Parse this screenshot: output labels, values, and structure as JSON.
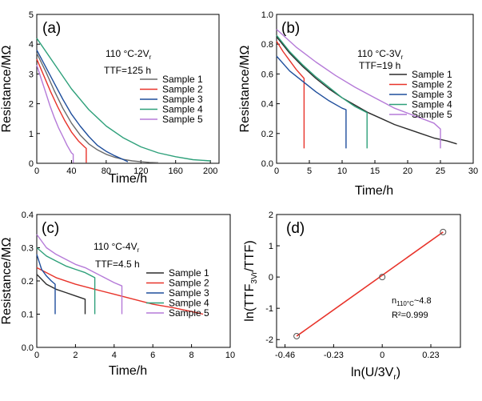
{
  "chart_data": [
    {
      "type": "line",
      "panel_label": "(a)",
      "condition": {
        "main": "110 °C-2V",
        "sub": "r"
      },
      "ttf": "TTF=125 h",
      "xlabel": "Time/h",
      "ylabel": "Resistance/MΩ",
      "xlim": [
        0,
        210
      ],
      "ylim": [
        0,
        5
      ],
      "xticks": [
        "0",
        "40",
        "80",
        "120",
        "160",
        "200"
      ],
      "yticks": [
        "0",
        "1",
        "2",
        "3",
        "4",
        "5"
      ],
      "xtick_values": [
        0,
        40,
        80,
        120,
        160,
        200
      ],
      "ytick_values": [
        0,
        1,
        2,
        3,
        4,
        5
      ],
      "legend": [
        "Sample 1",
        "Sample 2",
        "Sample 3",
        "Sample 4",
        "Sample 5"
      ],
      "series": [
        {
          "name": "Sample 1",
          "color": "#6b6b6b",
          "x": [
            0,
            10,
            20,
            30,
            40,
            50,
            60,
            70,
            80,
            90,
            100,
            110,
            120,
            130,
            140
          ],
          "y": [
            3.7,
            3.1,
            2.45,
            1.85,
            1.35,
            0.95,
            0.65,
            0.45,
            0.3,
            0.2,
            0.13,
            0.08,
            0.05,
            0.03,
            0.02
          ]
        },
        {
          "name": "Sample 2",
          "color": "#e8332a",
          "x": [
            0,
            8,
            16,
            24,
            32,
            40,
            48,
            55,
            57,
            57
          ],
          "y": [
            3.5,
            2.95,
            2.4,
            1.9,
            1.45,
            1.05,
            0.75,
            0.55,
            0.5,
            0.02
          ]
        },
        {
          "name": "Sample 3",
          "color": "#1f4e9c",
          "x": [
            0,
            10,
            20,
            30,
            40,
            50,
            60,
            70,
            80,
            90,
            100,
            105
          ],
          "y": [
            3.8,
            3.25,
            2.7,
            2.15,
            1.65,
            1.25,
            0.9,
            0.6,
            0.4,
            0.25,
            0.12,
            0.05
          ]
        },
        {
          "name": "Sample 4",
          "color": "#2ea07a",
          "x": [
            0,
            20,
            40,
            60,
            80,
            100,
            120,
            140,
            160,
            180,
            200
          ],
          "y": [
            4.2,
            3.35,
            2.5,
            1.8,
            1.25,
            0.85,
            0.55,
            0.35,
            0.22,
            0.12,
            0.08
          ]
        },
        {
          "name": "Sample 5",
          "color": "#b57ad8",
          "x": [
            0,
            5,
            10,
            15,
            20,
            25,
            30,
            35,
            40,
            42,
            42
          ],
          "y": [
            3.3,
            2.85,
            2.4,
            1.95,
            1.55,
            1.2,
            0.9,
            0.6,
            0.35,
            0.3,
            0.02
          ]
        }
      ]
    },
    {
      "type": "line",
      "panel_label": "(b)",
      "condition": {
        "main": "110 °C-3V",
        "sub": "r"
      },
      "ttf": "TTF=19 h",
      "xlabel": "Time/h",
      "ylabel": "Resistance/MΩ",
      "xlim": [
        0,
        30
      ],
      "ylim": [
        0,
        1.0
      ],
      "xticks": [
        "0",
        "5",
        "10",
        "15",
        "20",
        "25",
        "30"
      ],
      "yticks": [
        "0.0",
        "0.2",
        "0.4",
        "0.6",
        "0.8",
        "1.0"
      ],
      "xtick_values": [
        0,
        5,
        10,
        15,
        20,
        25,
        30
      ],
      "ytick_values": [
        0,
        0.2,
        0.4,
        0.6,
        0.8,
        1.0
      ],
      "legend": [
        "Sample 1",
        "Sample 2",
        "Sample 3",
        "Sample 4",
        "Sample 5"
      ],
      "series": [
        {
          "name": "Sample 1",
          "color": "#2b2b2b",
          "x": [
            0,
            2,
            4,
            6,
            8,
            10,
            12,
            14,
            16,
            18,
            20,
            22,
            24,
            26,
            27.5
          ],
          "y": [
            0.85,
            0.74,
            0.65,
            0.57,
            0.5,
            0.44,
            0.39,
            0.34,
            0.3,
            0.26,
            0.23,
            0.2,
            0.17,
            0.15,
            0.13
          ]
        },
        {
          "name": "Sample 2",
          "color": "#e8332a",
          "x": [
            0,
            1,
            2,
            3,
            4,
            4.2,
            4.2
          ],
          "y": [
            0.82,
            0.75,
            0.69,
            0.63,
            0.58,
            0.57,
            0.1
          ]
        },
        {
          "name": "Sample 3",
          "color": "#1f4e9c",
          "x": [
            0,
            2,
            4,
            6,
            8,
            10,
            10.6,
            10.6
          ],
          "y": [
            0.72,
            0.62,
            0.55,
            0.48,
            0.42,
            0.37,
            0.36,
            0.1
          ]
        },
        {
          "name": "Sample 4",
          "color": "#2ea07a",
          "x": [
            0,
            2,
            4,
            6,
            8,
            10,
            12,
            13.8,
            13.8
          ],
          "y": [
            0.86,
            0.75,
            0.66,
            0.58,
            0.51,
            0.44,
            0.38,
            0.34,
            0.1
          ]
        },
        {
          "name": "Sample 5",
          "color": "#b57ad8",
          "x": [
            0,
            3,
            6,
            9,
            12,
            15,
            18,
            21,
            24,
            25,
            25
          ],
          "y": [
            0.9,
            0.78,
            0.68,
            0.59,
            0.51,
            0.44,
            0.37,
            0.32,
            0.27,
            0.23,
            0.1
          ]
        }
      ]
    },
    {
      "type": "line",
      "panel_label": "(c)",
      "condition": {
        "main": "110 °C-4V",
        "sub": "r"
      },
      "ttf": "TTF=4.5 h",
      "xlabel": "Time/h",
      "ylabel": "Resistance/MΩ",
      "xlim": [
        0,
        10
      ],
      "ylim": [
        0,
        0.4
      ],
      "xticks": [
        "0",
        "2",
        "4",
        "6",
        "8",
        "10"
      ],
      "yticks": [
        "0.0",
        "0.1",
        "0.2",
        "0.3",
        "0.4"
      ],
      "xtick_values": [
        0,
        2,
        4,
        6,
        8,
        10
      ],
      "ytick_values": [
        0,
        0.1,
        0.2,
        0.3,
        0.4
      ],
      "legend": [
        "Sample 1",
        "Sample 2",
        "Sample 3",
        "Sample 4",
        "Sample 5"
      ],
      "series": [
        {
          "name": "Sample 1",
          "color": "#2b2b2b",
          "x": [
            0,
            0.5,
            1,
            1.5,
            2,
            2.5,
            2.5
          ],
          "y": [
            0.22,
            0.19,
            0.175,
            0.165,
            0.155,
            0.145,
            0.1
          ]
        },
        {
          "name": "Sample 2",
          "color": "#e8332a",
          "x": [
            0,
            1,
            2,
            3,
            4,
            5,
            6,
            7,
            8,
            8.6
          ],
          "y": [
            0.24,
            0.21,
            0.19,
            0.175,
            0.16,
            0.145,
            0.13,
            0.12,
            0.108,
            0.1
          ]
        },
        {
          "name": "Sample 3",
          "color": "#1f4e9c",
          "x": [
            0,
            0.25,
            0.5,
            0.75,
            0.95,
            0.95
          ],
          "y": [
            0.28,
            0.235,
            0.215,
            0.2,
            0.19,
            0.1
          ]
        },
        {
          "name": "Sample 4",
          "color": "#2ea07a",
          "x": [
            0,
            0.5,
            1,
            1.5,
            2,
            2.5,
            3,
            3,
            3
          ],
          "y": [
            0.3,
            0.275,
            0.26,
            0.245,
            0.235,
            0.225,
            0.21,
            0.2,
            0.1
          ]
        },
        {
          "name": "Sample 5",
          "color": "#b57ad8",
          "x": [
            0,
            0.5,
            1,
            1.5,
            2,
            2.5,
            3,
            3.5,
            4,
            4.4,
            4.4
          ],
          "y": [
            0.34,
            0.3,
            0.28,
            0.265,
            0.25,
            0.24,
            0.225,
            0.21,
            0.195,
            0.185,
            0.1
          ]
        }
      ]
    },
    {
      "type": "scatter",
      "panel_label": "(d)",
      "xlabel": {
        "main": "ln(U/3V",
        "sub": "r",
        "tail": ")"
      },
      "ylabel": {
        "main": "ln(TTF",
        "sub": "3Vr",
        "tail": "/TTF)"
      },
      "xlim": [
        -0.5,
        0.37
      ],
      "ylim": [
        -2.25,
        2.0
      ],
      "xticks": [
        "-0.46",
        "-0.23",
        "0",
        "0.23"
      ],
      "yticks": [
        "-2",
        "-1",
        "0",
        "1",
        "2"
      ],
      "xtick_values": [
        -0.46,
        -0.23,
        0,
        0.23
      ],
      "ytick_values": [
        -2,
        -1,
        0,
        1,
        2
      ],
      "points": {
        "x": [
          -0.405,
          0,
          0.288
        ],
        "y": [
          -1.89,
          0,
          1.44
        ]
      },
      "fit_line": {
        "x": [
          -0.405,
          0.288
        ],
        "y": [
          -1.89,
          1.44
        ],
        "color": "#e8332a"
      },
      "annotation": {
        "n_main": "n",
        "n_sub": "110°C",
        "n_tail": "~4.8",
        "r2": "R²=0.999"
      }
    }
  ]
}
